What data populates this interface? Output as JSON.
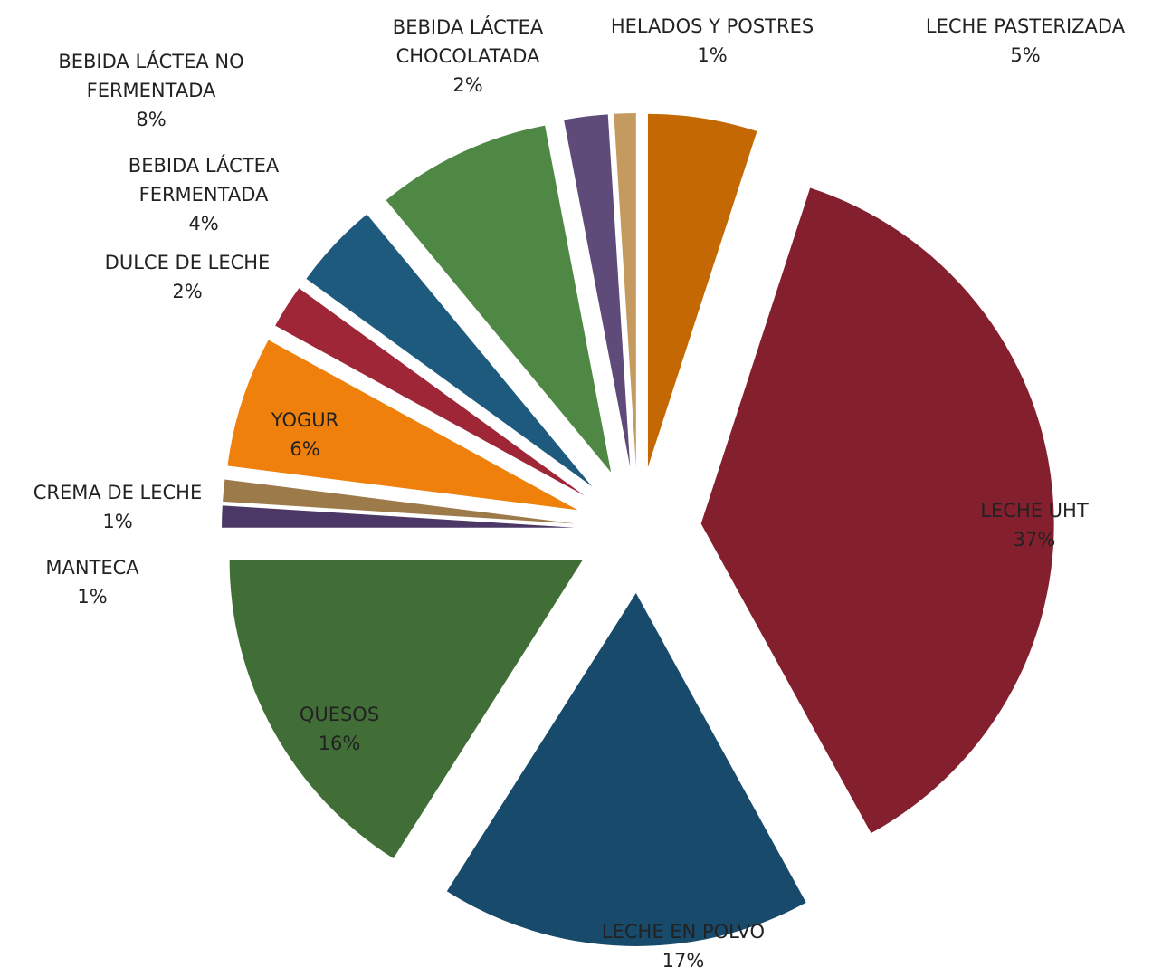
{
  "chart_data": {
    "type": "pie",
    "categories": [
      "LECHE PASTERIZADA",
      "LECHE UHT",
      "LECHE EN POLVO",
      "QUESOS",
      "MANTECA",
      "CREMA DE LECHE",
      "YOGUR",
      "DULCE DE LECHE",
      "BEBIDA LÁCTEA FERMENTADA",
      "BEBIDA LÁCTEA NO FERMENTADA",
      "BEBIDA LÁCTEA CHOCOLATADA",
      "HELADOS Y POSTRES"
    ],
    "values": [
      5,
      37,
      17,
      16,
      1,
      1,
      6,
      2,
      4,
      8,
      2,
      1
    ],
    "value_labels": [
      "5%",
      "37%",
      "17%",
      "16%",
      "1%",
      "1%",
      "6%",
      "2%",
      "4%",
      "8%",
      "2%",
      "1%"
    ],
    "colors": [
      "#c46804",
      "#841f2e",
      "#184a6b",
      "#416e37",
      "#4b3866",
      "#9d7a4a",
      "#ef800c",
      "#9e2637",
      "#1d5a7d",
      "#4f8744",
      "#5f4b7a",
      "#c49a5e"
    ]
  }
}
